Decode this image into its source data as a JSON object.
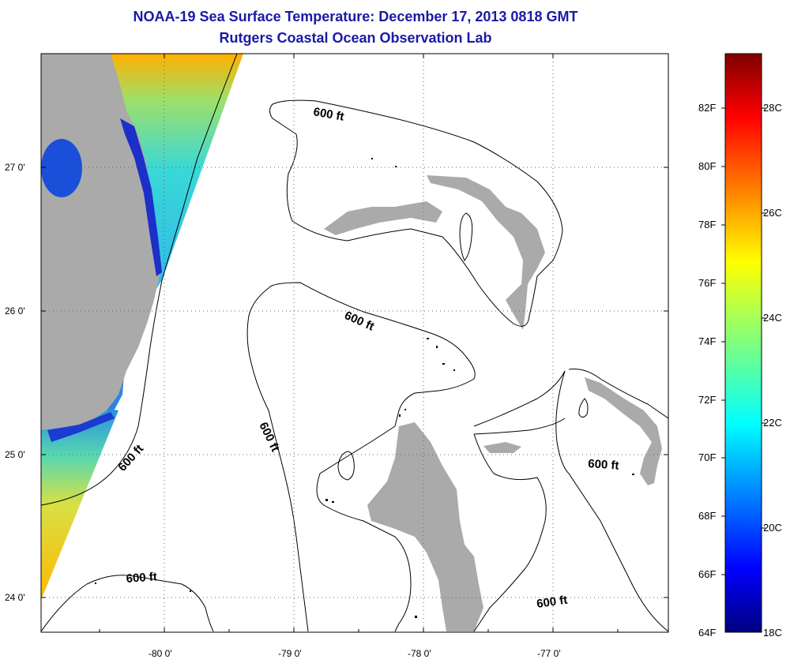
{
  "title": "NOAA-19 Sea Surface Temperature:  December 17, 2013 0818 GMT",
  "subtitle": "Rutgers Coastal Ocean Observation Lab",
  "map": {
    "lon_labels": [
      "-80 0'",
      "-79 0'",
      "-78 0'",
      "-77 0'"
    ],
    "lat_labels": [
      "27 0'",
      "26 0'",
      "25 0'",
      "24 0'"
    ],
    "contour_labels": [
      "600 ft",
      "600 ft",
      "600 ft",
      "600 ft",
      "600 ft",
      "600 ft"
    ],
    "land_color": "#aaaaaa",
    "grid": "dotted"
  },
  "colorbar": {
    "fahrenheit_labels": [
      "82F",
      "80F",
      "78F",
      "76F",
      "74F",
      "72F",
      "70F",
      "68F",
      "66F",
      "64F"
    ],
    "celsius_labels": [
      "28C",
      "26C",
      "24C",
      "22C",
      "20C",
      "18C"
    ],
    "colormap": "jet",
    "min_label": "64F",
    "max_label": "28C"
  }
}
